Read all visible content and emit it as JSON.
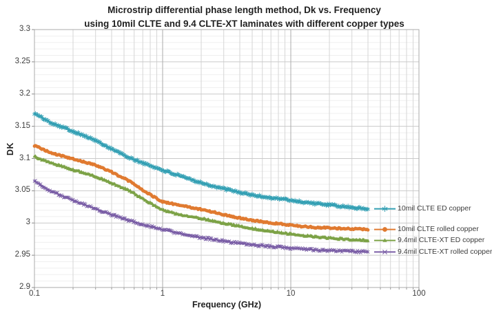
{
  "title": {
    "line1": "Microstrip differential phase length method, Dk vs. Frequency",
    "line2": "using 10mil CLTE and 9.4 CLTE-XT laminates with different copper types"
  },
  "chart_data": {
    "type": "line",
    "x_axis": {
      "label": "Frequency (GHz)",
      "scale": "log",
      "min": 0.1,
      "max": 100,
      "tick_labels": [
        "0.1",
        "1",
        "10",
        "100"
      ],
      "tick_values": [
        0.1,
        1,
        10,
        100
      ]
    },
    "y_axis": {
      "label": "DK",
      "min": 2.9,
      "max": 3.3,
      "tick_step": 0.05,
      "tick_labels": [
        "2.9",
        "2.95",
        "3",
        "3.05",
        "3.1",
        "3.15",
        "3.2",
        "3.25",
        "3.3"
      ],
      "tick_values": [
        2.9,
        2.95,
        3,
        3.05,
        3.1,
        3.15,
        3.2,
        3.25,
        3.3
      ]
    },
    "grid": {
      "major": true,
      "minor": true
    },
    "legend_position": "inside-right",
    "x": [
      0.1,
      0.13,
      0.17,
      0.22,
      0.3,
      0.4,
      0.55,
      0.75,
      1,
      1.4,
      1.9,
      2.6,
      3.5,
      4.8,
      6.5,
      8.8,
      12,
      16,
      22,
      30,
      40
    ],
    "series": [
      {
        "name": "10mil CLTE ED copper",
        "color": "#34a0b4",
        "marker": "asterisk",
        "values": [
          3.17,
          3.157,
          3.148,
          3.139,
          3.128,
          3.115,
          3.101,
          3.091,
          3.082,
          3.072,
          3.064,
          3.056,
          3.05,
          3.044,
          3.04,
          3.037,
          3.033,
          3.03,
          3.027,
          3.024,
          3.022
        ]
      },
      {
        "name": "10mil CLTE rolled copper",
        "color": "#e07a30",
        "marker": "circle",
        "values": [
          3.12,
          3.11,
          3.103,
          3.097,
          3.09,
          3.079,
          3.065,
          3.047,
          3.033,
          3.027,
          3.022,
          3.016,
          3.01,
          3.005,
          3.001,
          2.998,
          2.995,
          2.993,
          2.992,
          2.991,
          2.99
        ]
      },
      {
        "name": "9.4mil CLTE-XT ED copper",
        "color": "#7ca246",
        "marker": "triangle",
        "values": [
          3.103,
          3.094,
          3.087,
          3.08,
          3.072,
          3.062,
          3.05,
          3.034,
          3.02,
          3.012,
          3.008,
          3.002,
          2.997,
          2.992,
          2.988,
          2.984,
          2.981,
          2.978,
          2.976,
          2.974,
          2.973
        ]
      },
      {
        "name": "9.4mil CLTE-XT rolled copper",
        "color": "#7a5ea6",
        "marker": "x",
        "values": [
          3.065,
          3.051,
          3.041,
          3.032,
          3.022,
          3.013,
          3.004,
          2.996,
          2.99,
          2.983,
          2.978,
          2.974,
          2.97,
          2.967,
          2.964,
          2.962,
          2.96,
          2.958,
          2.957,
          2.956,
          2.955
        ]
      }
    ]
  }
}
